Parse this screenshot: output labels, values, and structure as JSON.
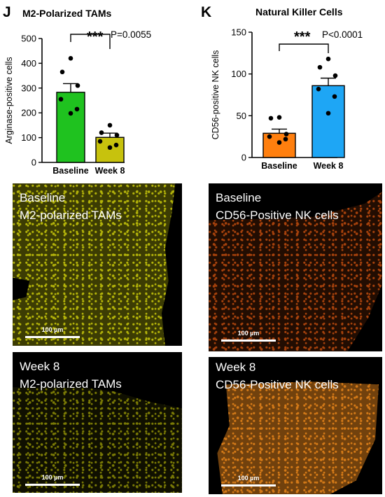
{
  "panels": [
    {
      "letter": "J",
      "title": "M2-Polarized TAMs",
      "chart_data": {
        "type": "bar",
        "title": "M2-Polarized TAMs",
        "xlabel": "",
        "ylabel": "Arginase-positive cells",
        "categories": [
          "Baseline",
          "Week 8"
        ],
        "values": [
          283,
          101
        ],
        "errors": [
          35,
          17
        ],
        "bar_colors": [
          "#1fc21f",
          "#c7c20d"
        ],
        "points": [
          [
            420,
            365,
            310,
            255,
            215,
            198
          ],
          [
            150,
            120,
            110,
            85,
            70,
            60
          ]
        ],
        "ylim": [
          0,
          500
        ],
        "yticks": [
          0,
          100,
          200,
          300,
          400,
          500
        ],
        "annotation": {
          "stars": "***",
          "text": "P=0.0055"
        }
      },
      "images": [
        {
          "label_line1": "Baseline",
          "label_line2": "M2-polarized TAMs",
          "scale": "100 µm",
          "stain_color": "#b4b40a"
        },
        {
          "label_line1": "Week 8",
          "label_line2": "M2-polarized TAMs",
          "scale": "100 µm",
          "stain_color": "#7a7a05"
        }
      ]
    },
    {
      "letter": "K",
      "title": "Natural Killer Cells",
      "chart_data": {
        "type": "bar",
        "title": "Natural Killer Cells",
        "xlabel": "",
        "ylabel": "CD56-positive NK cells",
        "categories": [
          "Baseline",
          "Week 8"
        ],
        "values": [
          29,
          86
        ],
        "errors": [
          5,
          9
        ],
        "bar_colors": [
          "#ff7f0e",
          "#1ea6f5"
        ],
        "points": [
          [
            48,
            47,
            28,
            25,
            22,
            18
          ],
          [
            118,
            108,
            98,
            82,
            73,
            53
          ]
        ],
        "ylim": [
          0,
          150
        ],
        "yticks": [
          0,
          50,
          100,
          150
        ],
        "annotation": {
          "stars": "***",
          "text": "P<0.0001"
        }
      },
      "images": [
        {
          "label_line1": "Baseline",
          "label_line2": "CD56-Positive NK cells",
          "scale": "100 µm",
          "stain_color": "#a8420c"
        },
        {
          "label_line1": "Week 8",
          "label_line2": "CD56-Positive NK cells",
          "scale": "100 µm",
          "stain_color": "#d47a18"
        }
      ]
    }
  ]
}
